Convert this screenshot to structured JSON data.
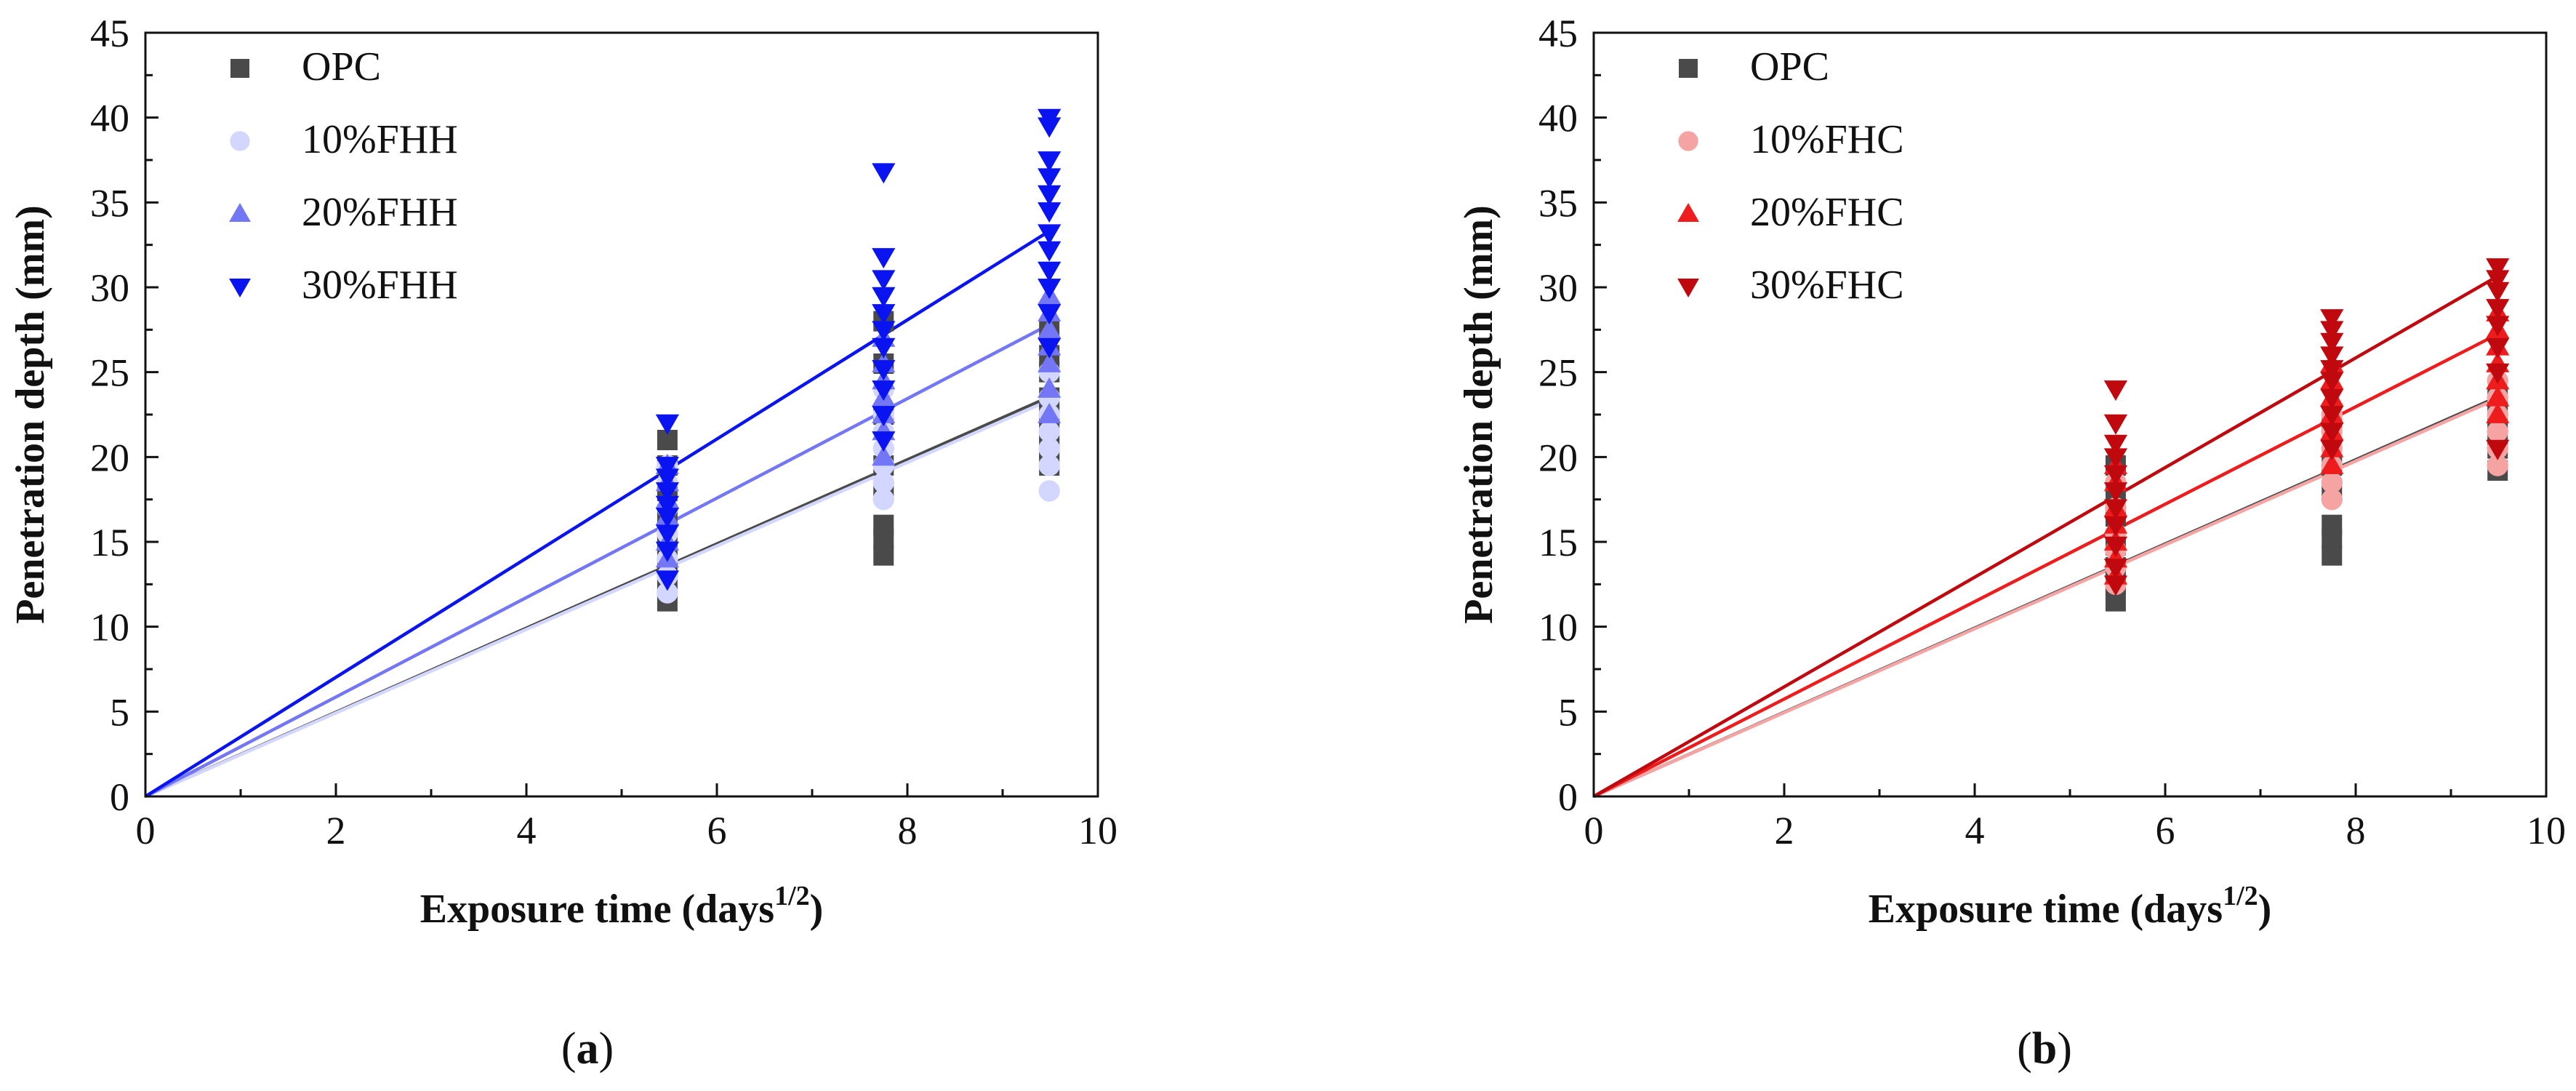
{
  "figure": {
    "captions": [
      {
        "open": "(",
        "letter": "a",
        "close": ")"
      },
      {
        "open": "(",
        "letter": "b",
        "close": ")"
      }
    ]
  },
  "chart_data": [
    {
      "type": "scatter",
      "panel": "a",
      "xlabel": "Exposure time (days",
      "xlabel_sup": "1/2",
      "xlabel_end": ")",
      "ylabel": "Penetration depth (mm)",
      "xlim": [
        0,
        10
      ],
      "ylim": [
        0,
        45
      ],
      "xticks": [
        0,
        2,
        4,
        6,
        8,
        10
      ],
      "yticks": [
        0,
        5,
        10,
        15,
        20,
        25,
        30,
        35,
        40,
        45
      ],
      "legend_position": "top-left",
      "series": [
        {
          "name": "OPC",
          "color": "#4a4a4a",
          "marker": "square",
          "fit_slope": 2.48,
          "points": [
            [
              5.48,
              11.5
            ],
            [
              5.48,
              12.5
            ],
            [
              5.48,
              13.5
            ],
            [
              5.48,
              14.8
            ],
            [
              5.48,
              16.5
            ],
            [
              5.48,
              18.0
            ],
            [
              5.48,
              19.5
            ],
            [
              5.48,
              21.0
            ],
            [
              7.75,
              14.2
            ],
            [
              7.75,
              15.2
            ],
            [
              7.75,
              16.0
            ],
            [
              7.75,
              18.0
            ],
            [
              7.75,
              19.5
            ],
            [
              7.75,
              22.5
            ],
            [
              7.75,
              25.5
            ],
            [
              7.75,
              28.0
            ],
            [
              9.49,
              19.5
            ],
            [
              9.49,
              20.5
            ],
            [
              9.49,
              21.5
            ],
            [
              9.49,
              22.5
            ],
            [
              9.49,
              23.5
            ],
            [
              9.49,
              25.0
            ],
            [
              9.49,
              26.0
            ],
            [
              9.49,
              27.5
            ]
          ]
        },
        {
          "name": "10%FHH",
          "color": "#d3d6ff",
          "marker": "circle",
          "fit_slope": 2.46,
          "points": [
            [
              5.48,
              12.0
            ],
            [
              5.48,
              13.0
            ],
            [
              5.48,
              14.0
            ],
            [
              5.48,
              15.5
            ],
            [
              5.48,
              17.0
            ],
            [
              5.48,
              18.5
            ],
            [
              5.48,
              19.5
            ],
            [
              7.75,
              17.5
            ],
            [
              7.75,
              18.5
            ],
            [
              7.75,
              19.5
            ],
            [
              7.75,
              20.5
            ],
            [
              7.75,
              21.5
            ],
            [
              7.75,
              22.5
            ],
            [
              7.75,
              24.0
            ],
            [
              9.49,
              18.0
            ],
            [
              9.49,
              19.5
            ],
            [
              9.49,
              20.5
            ],
            [
              9.49,
              21.5
            ],
            [
              9.49,
              22.5
            ],
            [
              9.49,
              23.5
            ],
            [
              9.49,
              25.0
            ]
          ]
        },
        {
          "name": "20%FHH",
          "color": "#7377f5",
          "marker": "triangle-up",
          "fit_slope": 2.93,
          "points": [
            [
              5.48,
              14.0
            ],
            [
              5.48,
              15.0
            ],
            [
              5.48,
              16.5
            ],
            [
              5.48,
              17.5
            ],
            [
              5.48,
              18.5
            ],
            [
              5.48,
              19.5
            ],
            [
              7.75,
              20.0
            ],
            [
              7.75,
              21.5
            ],
            [
              7.75,
              22.5
            ],
            [
              7.75,
              23.5
            ],
            [
              7.75,
              24.5
            ],
            [
              7.75,
              25.5
            ],
            [
              7.75,
              27.0
            ],
            [
              9.49,
              22.5
            ],
            [
              9.49,
              24.0
            ],
            [
              9.49,
              25.5
            ],
            [
              9.49,
              26.5
            ],
            [
              9.49,
              27.5
            ],
            [
              9.49,
              28.5
            ],
            [
              9.49,
              29.5
            ]
          ]
        },
        {
          "name": "30%FHH",
          "color": "#0a14f0",
          "marker": "triangle-down",
          "fit_slope": 3.51,
          "points": [
            [
              5.48,
              12.8
            ],
            [
              5.48,
              14.5
            ],
            [
              5.48,
              15.5
            ],
            [
              5.48,
              16.5
            ],
            [
              5.48,
              17.2
            ],
            [
              5.48,
              18.0
            ],
            [
              5.48,
              18.8
            ],
            [
              5.48,
              19.5
            ],
            [
              5.48,
              22.0
            ],
            [
              7.75,
              21.0
            ],
            [
              7.75,
              22.5
            ],
            [
              7.75,
              24.0
            ],
            [
              7.75,
              25.2
            ],
            [
              7.75,
              26.5
            ],
            [
              7.75,
              27.5
            ],
            [
              7.75,
              28.5
            ],
            [
              7.75,
              29.5
            ],
            [
              7.75,
              30.5
            ],
            [
              7.75,
              31.8
            ],
            [
              7.75,
              36.8
            ],
            [
              9.49,
              26.5
            ],
            [
              9.49,
              28.5
            ],
            [
              9.49,
              30.0
            ],
            [
              9.49,
              31.0
            ],
            [
              9.49,
              32.2
            ],
            [
              9.49,
              33.2
            ],
            [
              9.49,
              34.5
            ],
            [
              9.49,
              35.5
            ],
            [
              9.49,
              36.5
            ],
            [
              9.49,
              37.5
            ],
            [
              9.49,
              39.5
            ],
            [
              9.49,
              40.0
            ]
          ]
        }
      ]
    },
    {
      "type": "scatter",
      "panel": "b",
      "xlabel": "Exposure time (days",
      "xlabel_sup": "1/2",
      "xlabel_end": ")",
      "ylabel": "Penetration depth (mm)",
      "xlim": [
        0,
        10
      ],
      "ylim": [
        0,
        45
      ],
      "xticks": [
        0,
        2,
        4,
        6,
        8,
        10
      ],
      "yticks": [
        0,
        5,
        10,
        15,
        20,
        25,
        30,
        35,
        40,
        45
      ],
      "legend_position": "top-left",
      "series": [
        {
          "name": "OPC",
          "color": "#4a4a4a",
          "marker": "square",
          "fit_slope": 2.48,
          "points": [
            [
              5.48,
              11.5
            ],
            [
              5.48,
              12.5
            ],
            [
              5.48,
              13.5
            ],
            [
              5.48,
              14.8
            ],
            [
              5.48,
              16.5
            ],
            [
              5.48,
              18.0
            ],
            [
              5.48,
              19.5
            ],
            [
              7.75,
              14.2
            ],
            [
              7.75,
              15.2
            ],
            [
              7.75,
              16.0
            ],
            [
              7.75,
              18.0
            ],
            [
              7.75,
              19.5
            ],
            [
              7.75,
              22.0
            ],
            [
              9.49,
              19.2
            ],
            [
              9.49,
              20.5
            ],
            [
              9.49,
              21.5
            ],
            [
              9.49,
              22.5
            ],
            [
              9.49,
              23.5
            ]
          ]
        },
        {
          "name": "10%FHC",
          "color": "#f5a3a3",
          "marker": "circle",
          "fit_slope": 2.47,
          "points": [
            [
              5.48,
              12.5
            ],
            [
              5.48,
              13.5
            ],
            [
              5.48,
              14.5
            ],
            [
              5.48,
              15.5
            ],
            [
              5.48,
              17.0
            ],
            [
              5.48,
              18.5
            ],
            [
              7.75,
              17.5
            ],
            [
              7.75,
              18.5
            ],
            [
              7.75,
              19.5
            ],
            [
              7.75,
              20.5
            ],
            [
              7.75,
              21.5
            ],
            [
              7.75,
              22.5
            ],
            [
              9.49,
              19.5
            ],
            [
              9.49,
              20.5
            ],
            [
              9.49,
              21.5
            ],
            [
              9.49,
              22.5
            ],
            [
              9.49,
              23.5
            ],
            [
              9.49,
              24.5
            ]
          ]
        },
        {
          "name": "20%FHC",
          "color": "#ee1c1c",
          "marker": "triangle-up",
          "fit_slope": 2.87,
          "points": [
            [
              5.48,
              13.0
            ],
            [
              5.48,
              14.0
            ],
            [
              5.48,
              15.0
            ],
            [
              5.48,
              16.0
            ],
            [
              5.48,
              17.0
            ],
            [
              5.48,
              18.5
            ],
            [
              5.48,
              19.5
            ],
            [
              7.75,
              19.5
            ],
            [
              7.75,
              20.5
            ],
            [
              7.75,
              21.5
            ],
            [
              7.75,
              22.5
            ],
            [
              7.75,
              23.5
            ],
            [
              7.75,
              24.5
            ],
            [
              7.75,
              25.5
            ],
            [
              9.49,
              22.5
            ],
            [
              9.49,
              23.5
            ],
            [
              9.49,
              24.5
            ],
            [
              9.49,
              25.5
            ],
            [
              9.49,
              26.5
            ],
            [
              9.49,
              27.5
            ],
            [
              9.49,
              28.5
            ]
          ]
        },
        {
          "name": "30%FHC",
          "color": "#c0090f",
          "marker": "triangle-down",
          "fit_slope": 3.23,
          "points": [
            [
              5.48,
              12.5
            ],
            [
              5.48,
              13.5
            ],
            [
              5.48,
              14.8
            ],
            [
              5.48,
              16.0
            ],
            [
              5.48,
              17.0
            ],
            [
              5.48,
              18.0
            ],
            [
              5.48,
              19.0
            ],
            [
              5.48,
              20.0
            ],
            [
              5.48,
              20.8
            ],
            [
              5.48,
              22.0
            ],
            [
              5.48,
              24.0
            ],
            [
              7.75,
              20.5
            ],
            [
              7.75,
              21.5
            ],
            [
              7.75,
              22.5
            ],
            [
              7.75,
              23.5
            ],
            [
              7.75,
              24.5
            ],
            [
              7.75,
              25.2
            ],
            [
              7.75,
              26.0
            ],
            [
              7.75,
              26.8
            ],
            [
              7.75,
              27.5
            ],
            [
              7.75,
              28.2
            ],
            [
              9.49,
              20.5
            ],
            [
              9.49,
              25.0
            ],
            [
              9.49,
              26.5
            ],
            [
              9.49,
              27.8
            ],
            [
              9.49,
              28.8
            ],
            [
              9.49,
              29.8
            ],
            [
              9.49,
              30.5
            ],
            [
              9.49,
              31.2
            ]
          ]
        }
      ]
    }
  ]
}
